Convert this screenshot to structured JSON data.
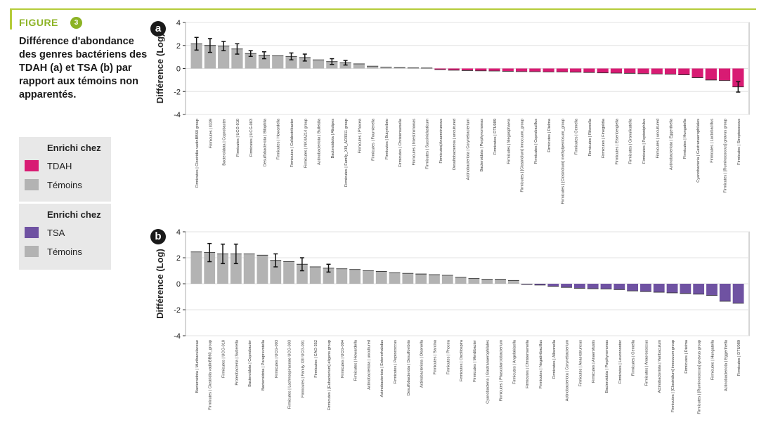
{
  "figure": {
    "label": "FIGURE",
    "number": "3"
  },
  "caption": "Différence d'abondance des genres bactériens des TDAH (a) et TSA (b) par rapport aux témoins non apparentés.",
  "legend_a": {
    "title": "Enrichi chez",
    "items": [
      {
        "label": "TDAH",
        "color": "#d81b73"
      },
      {
        "label": "Témoins",
        "color": "#b3b3b3"
      }
    ]
  },
  "legend_b": {
    "title": "Enrichi chez",
    "items": [
      {
        "label": "TSA",
        "color": "#6f52a2"
      },
      {
        "label": "Témoins",
        "color": "#b3b3b3"
      }
    ]
  },
  "chart_data": [
    {
      "panel": "a",
      "type": "bar",
      "ylabel": "Différence (Log)",
      "ylim": [
        -4,
        4
      ],
      "yticks": [
        4,
        2,
        0,
        -2,
        -4
      ],
      "grid": true,
      "colors": {
        "positive": "#b3b3b3",
        "negative": "#d81b73"
      },
      "categories": [
        "Firmicutes | Clostridia vadinBB60 group",
        "Firmicutes | ll339",
        "Bacteroidota | Coprobacter",
        "Firmicutes | UCG-010",
        "Firmicutes | UCG-003",
        "Desulfobacterota | Bilophila",
        "Firmicutes | Howardella",
        "Firmicutes | Colidextribacter",
        "Firmicutes | NK4A214 group",
        "Actinobacteriota | Bulleidia",
        "Bacteroidota | Alistipes",
        "Firmicutes | Family_XIII_AD3011 group",
        "Firmicutes | Phocea",
        "Firmicutes | Fournierella",
        "Firmicutes | Butyrivibrio",
        "Firmicutes | Christensenella",
        "Firmicutes | Intestinimonas",
        "Firmicutes | Succiniclasticum",
        "Firmicutes|Anaerotruncus",
        "Desulfobacterota | uncultured",
        "Actinobacteriota | Corynebacterium",
        "Bacteroidota | Porphyromonas",
        "Firmicutes | DTU089",
        "Firmicutes | Megasphaera",
        "Firmicutes | [Clostridium] innocuum_group",
        "Firmicutes | Coprobacillus",
        "Firmicutes | Dielma",
        "Firmicutes | [Clostridium] methylpentosum_group",
        "Firmicutes | Gemella",
        "Firmicutes | Rikenella",
        "Firmicutes | Finegoldia",
        "Firmicutes | Eisenbergiella",
        "Firmicutes | Granulicatella",
        "Firmicutes | Peptoniphilus",
        "Firmicutes | uncultured",
        "Actinobacteriota | Eggerthella",
        "Firmicutes | Hungatella",
        "Cyanobacteria | Gastranaerophilales",
        "Firmicutes | Lactobacillus",
        "Firmicutes | [Ruminococcus] gnavus group",
        "Firmicutes | Streptococcus"
      ],
      "values": [
        2.15,
        2.0,
        1.95,
        1.7,
        1.3,
        1.15,
        1.1,
        1.05,
        0.95,
        0.75,
        0.6,
        0.5,
        0.4,
        0.2,
        0.12,
        0.08,
        0.05,
        0.04,
        -0.1,
        -0.15,
        -0.18,
        -0.2,
        -0.22,
        -0.25,
        -0.27,
        -0.28,
        -0.3,
        -0.3,
        -0.32,
        -0.35,
        -0.38,
        -0.4,
        -0.42,
        -0.45,
        -0.48,
        -0.5,
        -0.55,
        -0.8,
        -1.0,
        -1.05,
        -1.6
      ],
      "errors": [
        0.55,
        0.6,
        0.4,
        0.45,
        0.25,
        0.3,
        0.0,
        0.3,
        0.3,
        0.0,
        0.25,
        0.2,
        0.0,
        0.0,
        0.0,
        0.0,
        0.0,
        0.0,
        0.0,
        0.0,
        0.0,
        0.0,
        0.0,
        0.0,
        0.0,
        0.0,
        0.0,
        0.0,
        0.0,
        0.0,
        0.0,
        0.0,
        0.0,
        0.0,
        0.0,
        0.0,
        0.0,
        0.0,
        0.0,
        0.0,
        0.45
      ]
    },
    {
      "panel": "b",
      "type": "bar",
      "ylabel": "Différence (Log)",
      "ylim": [
        -4,
        4
      ],
      "yticks": [
        4,
        2,
        0,
        -2,
        -4
      ],
      "grid": true,
      "colors": {
        "positive": "#b3b3b3",
        "negative": "#6f52a2"
      },
      "categories": [
        "Bacteroidota | Muribaculaceae",
        "Firmicutes | Clostridia vadinBB60_group",
        "Firmicutes | UCG-010",
        "Proteobacteria | Sutterella",
        "Bacteroidota | Coprobacter",
        "Bacteroidota | Paraprevotella",
        "Firmicutes | UCG-003",
        "Firmicutes | Lachnospiraceae UCG-003",
        "Firmicutes | Family XIII UCG-001",
        "Firmicutes | CAG-352",
        "Firmicutes | [Eubacterium] eligens group",
        "Firmicutes | UCG-004",
        "Firmicutes | Howardella",
        "Actinobacteriota | uncultured",
        "Actinobacteriota | Enterorhabdus",
        "Firmicutes | Peptococcus",
        "Desulfobacterota | Desulfovibrio",
        "Actinobacteriota | Olsenella",
        "Firmicutes | Sarcina",
        "Firmicutes | Phocea",
        "Firmicutes | Oscillospira",
        "Firmicutes | Merdibacter",
        "Cyanobacteria | Gastranaerophilales",
        "Firmicutes | Phascolarctobacterium",
        "Firmicutes | Angelakisella",
        "Firmicutes | Christensenella",
        "Firmicutes | Negativibacillus",
        "Firmicutes | Allisonella",
        "Actinobacteriota | Corynebacterium",
        "Firmicutes | Anaerotruncus",
        "Firmicutes | Anaerofustis",
        "Bacteroidota | Porphyromonas",
        "Firmicutes | Leuconostoc",
        "Firmicutes | Gemella",
        "Firmicutes | Anaerococcus",
        "Actinobacteriota | Varibaculum",
        "Firmicutes | [Clostridium] innocuum group",
        "Firmicutes | Dielma",
        "Firmicutes | [Ruminococcus] gnavus group",
        "Firmicutes | Hungatella",
        "Actinobacteriota | Eggerthella",
        "Firmicutes | DTU089"
      ],
      "values": [
        2.45,
        2.4,
        2.3,
        2.3,
        2.3,
        2.2,
        1.8,
        1.7,
        1.5,
        1.3,
        1.2,
        1.15,
        1.1,
        1.0,
        0.95,
        0.85,
        0.8,
        0.75,
        0.7,
        0.65,
        0.5,
        0.4,
        0.35,
        0.35,
        0.25,
        -0.05,
        -0.1,
        -0.2,
        -0.28,
        -0.35,
        -0.38,
        -0.4,
        -0.45,
        -0.55,
        -0.6,
        -0.65,
        -0.7,
        -0.75,
        -0.8,
        -0.9,
        -1.35,
        -1.5
      ],
      "errors": [
        0.0,
        0.7,
        0.75,
        0.75,
        0.0,
        0.0,
        0.5,
        0.0,
        0.5,
        0.0,
        0.3,
        0.0,
        0.0,
        0.0,
        0.0,
        0.0,
        0.0,
        0.0,
        0.0,
        0.0,
        0.0,
        0.0,
        0.0,
        0.0,
        0.0,
        0.0,
        0.0,
        0.0,
        0.0,
        0.0,
        0.0,
        0.0,
        0.0,
        0.0,
        0.0,
        0.0,
        0.0,
        0.0,
        0.0,
        0.0,
        0.0,
        0.0
      ]
    }
  ]
}
